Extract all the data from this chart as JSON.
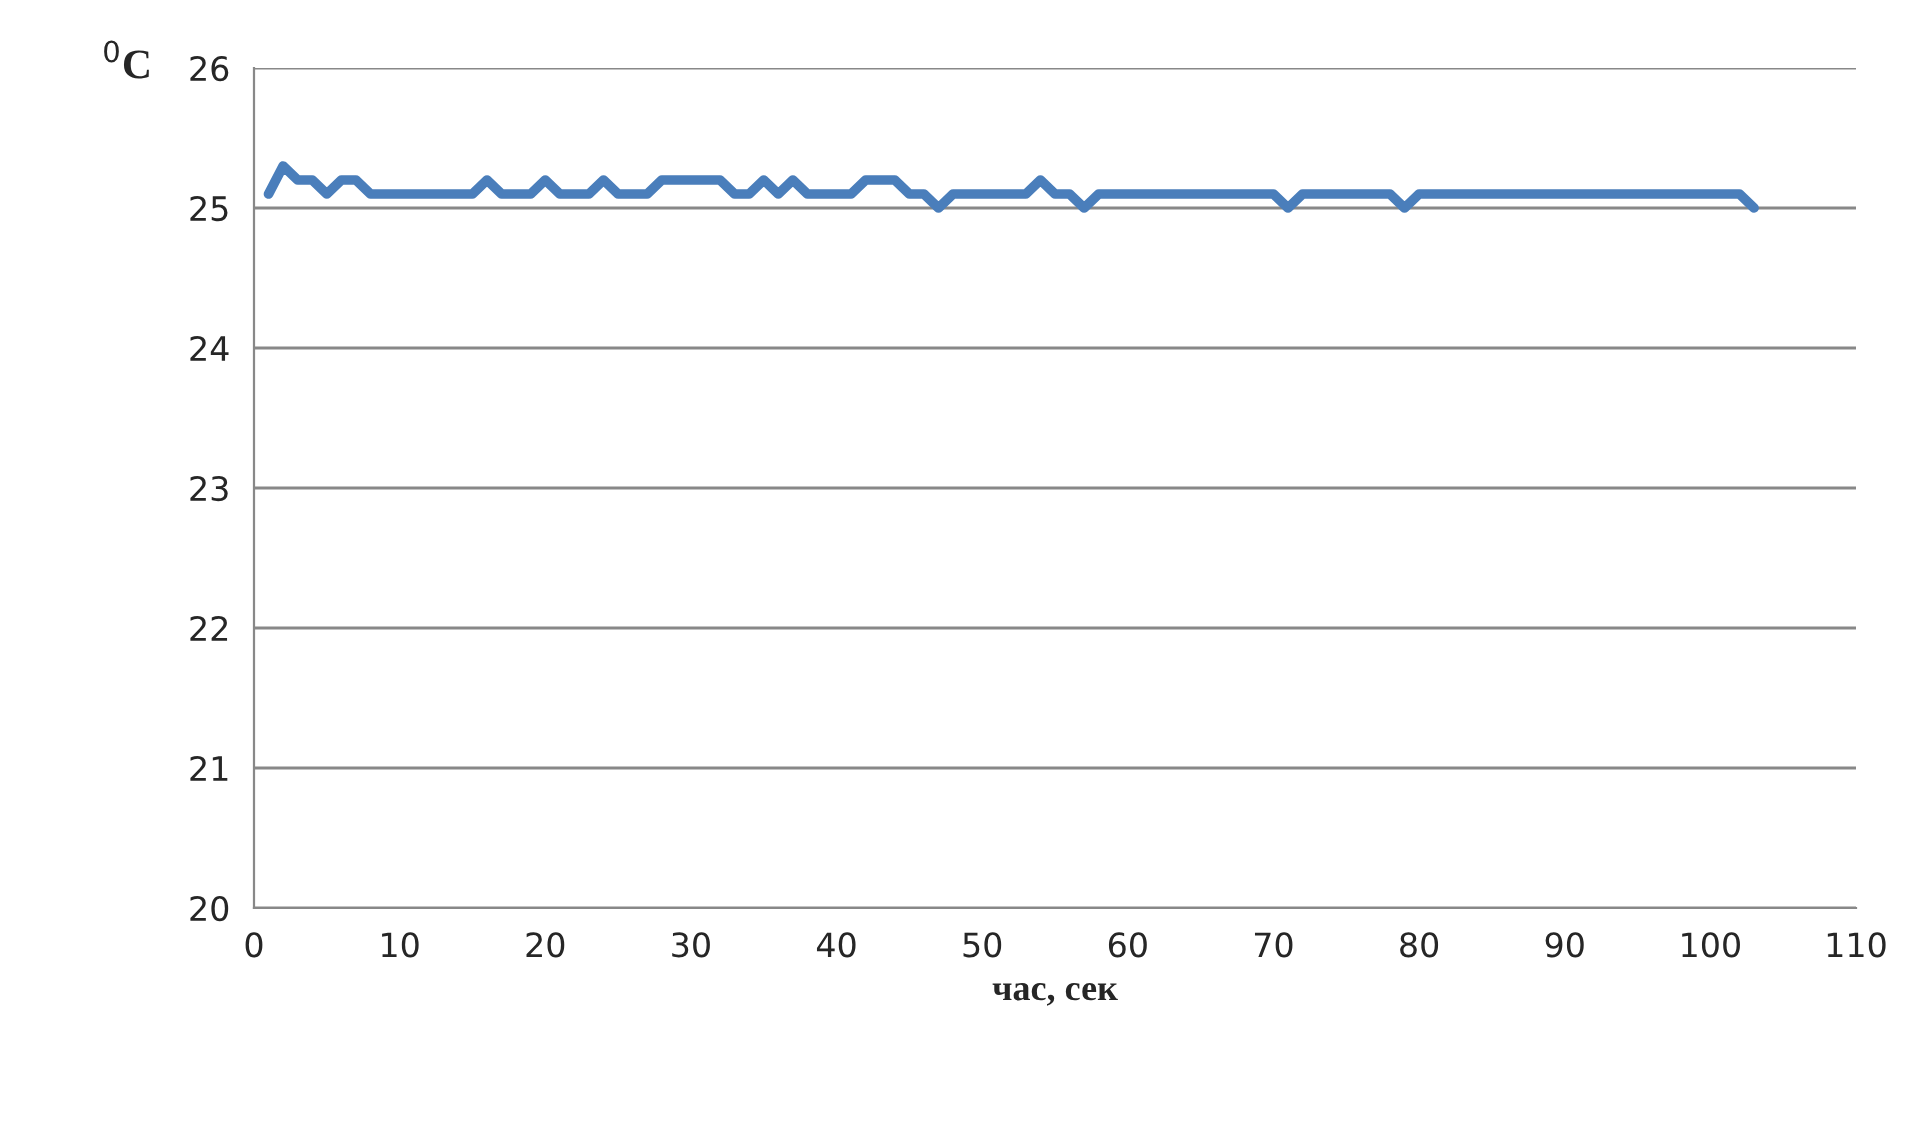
{
  "chart_data": {
    "type": "line",
    "xlabel": "час, сек",
    "ylabel": "$^{0}$C",
    "x": [
      1,
      2,
      3,
      4,
      5,
      6,
      7,
      8,
      9,
      10,
      11,
      12,
      13,
      14,
      15,
      16,
      17,
      18,
      19,
      20,
      21,
      22,
      23,
      24,
      25,
      26,
      27,
      28,
      29,
      30,
      31,
      32,
      33,
      34,
      35,
      36,
      37,
      38,
      39,
      40,
      41,
      42,
      43,
      44,
      45,
      46,
      47,
      48,
      49,
      50,
      51,
      52,
      53,
      54,
      55,
      56,
      57,
      58,
      59,
      60,
      61,
      62,
      63,
      64,
      65,
      66,
      67,
      68,
      69,
      70,
      71,
      72,
      73,
      74,
      75,
      76,
      77,
      78,
      79,
      80,
      81,
      82,
      83,
      84,
      85,
      86,
      87,
      88,
      89,
      90,
      91,
      92,
      93,
      94,
      95,
      96,
      97,
      98,
      99,
      100,
      101,
      102,
      103
    ],
    "series": [
      {
        "color": "#4a7ebb",
        "values": [
          25.1,
          25.3,
          25.2,
          25.2,
          25.1,
          25.2,
          25.2,
          25.1,
          25.1,
          25.1,
          25.1,
          25.1,
          25.1,
          25.1,
          25.1,
          25.2,
          25.1,
          25.1,
          25.1,
          25.2,
          25.1,
          25.1,
          25.1,
          25.2,
          25.1,
          25.1,
          25.1,
          25.2,
          25.2,
          25.2,
          25.2,
          25.2,
          25.1,
          25.1,
          25.2,
          25.1,
          25.2,
          25.1,
          25.1,
          25.1,
          25.1,
          25.2,
          25.2,
          25.2,
          25.1,
          25.1,
          25.0,
          25.1,
          25.1,
          25.1,
          25.1,
          25.1,
          25.1,
          25.2,
          25.1,
          25.1,
          25.0,
          25.1,
          25.1,
          25.1,
          25.1,
          25.1,
          25.1,
          25.1,
          25.1,
          25.1,
          25.1,
          25.1,
          25.1,
          25.1,
          25.0,
          25.1,
          25.1,
          25.1,
          25.1,
          25.1,
          25.1,
          25.1,
          25.0,
          25.1,
          25.1,
          25.1,
          25.1,
          25.1,
          25.1,
          25.1,
          25.1,
          25.1,
          25.1,
          25.1,
          25.1,
          25.1,
          25.1,
          25.1,
          25.1,
          25.1,
          25.1,
          25.1,
          25.1,
          25.1,
          25.1,
          25.1,
          25.0
        ]
      }
    ],
    "xlim": [
      0,
      110
    ],
    "xticks": [
      0,
      10,
      20,
      30,
      40,
      50,
      60,
      70,
      80,
      90,
      100,
      110
    ],
    "ylim": [
      20,
      26
    ],
    "yticks": [
      20,
      21,
      22,
      23,
      24,
      25,
      26
    ],
    "grid": "y",
    "marker": "none",
    "line_style": "solid"
  }
}
